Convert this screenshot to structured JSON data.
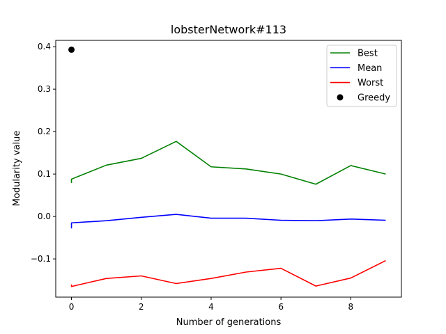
{
  "chart_data": {
    "type": "line",
    "title": "lobsterNetwork#113",
    "xlabel": "Number of generations",
    "ylabel": "Modularity value",
    "xlim": [
      -0.45,
      9.45
    ],
    "ylim": [
      -0.19,
      0.415
    ],
    "xticks": [
      0,
      2,
      4,
      6,
      8
    ],
    "xtick_labels": [
      "0",
      "2",
      "4",
      "6",
      "8"
    ],
    "yticks": [
      -0.1,
      0.0,
      0.1,
      0.2,
      0.3,
      0.4
    ],
    "ytick_labels": [
      "−0.1",
      "0.0",
      "0.1",
      "0.2",
      "0.3",
      "0.4"
    ],
    "grid": false,
    "legend_position": "top-right",
    "series": [
      {
        "name": "Best",
        "color": "#008000",
        "x": [
          0,
          0,
          1,
          2,
          3,
          4,
          5,
          6,
          7,
          8,
          9
        ],
        "y": [
          0.079,
          0.088,
          0.121,
          0.137,
          0.177,
          0.117,
          0.112,
          0.1,
          0.076,
          0.12,
          0.1
        ]
      },
      {
        "name": "Mean",
        "color": "#0000ff",
        "x": [
          0,
          0,
          1,
          2,
          3,
          4,
          5,
          6,
          7,
          8,
          9
        ],
        "y": [
          -0.028,
          -0.015,
          -0.01,
          -0.002,
          0.005,
          -0.004,
          -0.004,
          -0.009,
          -0.01,
          -0.006,
          -0.009
        ]
      },
      {
        "name": "Worst",
        "color": "#ff0000",
        "x": [
          0,
          0,
          1,
          2,
          3,
          4,
          5,
          6,
          7,
          8,
          9
        ],
        "y": [
          -0.16,
          -0.165,
          -0.146,
          -0.14,
          -0.158,
          -0.146,
          -0.131,
          -0.122,
          -0.164,
          -0.145,
          -0.104
        ]
      }
    ],
    "points": [
      {
        "name": "Greedy",
        "color": "#000000",
        "x": 0,
        "y": 0.393
      }
    ]
  }
}
